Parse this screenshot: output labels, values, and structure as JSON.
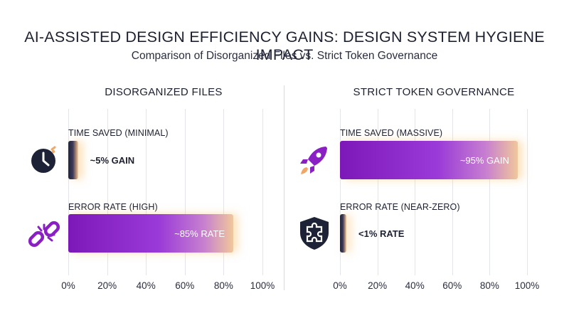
{
  "title": "AI-ASSISTED DESIGN EFFICIENCY GAINS: DESIGN SYSTEM HYGIENE IMPACT",
  "subtitle": "Comparison of Disorganized Files vs. Strict Token Governance",
  "colors": {
    "purple": "#7d18b8",
    "navy": "#1d2236",
    "orange_glow": "#f1c79a"
  },
  "chart_data": [
    {
      "type": "bar",
      "orientation": "horizontal",
      "title": "DISORGANIZED FILES",
      "xlim": [
        0,
        100
      ],
      "x_ticks": [
        "0%",
        "20%",
        "40%",
        "60%",
        "80%",
        "100%"
      ],
      "grid": true,
      "categories": [
        "TIME SAVED (MINIMAL)",
        "ERROR RATE (HIGH)"
      ],
      "values": [
        5,
        85
      ],
      "data_labels": [
        "~5% GAIN",
        "~85% RATE"
      ],
      "icons": [
        "clock-icon",
        "broken-link-icon"
      ]
    },
    {
      "type": "bar",
      "orientation": "horizontal",
      "title": "STRICT TOKEN GOVERNANCE",
      "xlim": [
        0,
        100
      ],
      "x_ticks": [
        "0%",
        "20%",
        "40%",
        "60%",
        "80%",
        "100%"
      ],
      "grid": true,
      "categories": [
        "TIME SAVED (MASSIVE)",
        "ERROR RATE (NEAR-ZERO)"
      ],
      "values": [
        95,
        1
      ],
      "data_labels": [
        "~95% GAIN",
        "<1% RATE"
      ],
      "icons": [
        "rocket-icon",
        "shield-puzzle-icon"
      ]
    }
  ]
}
